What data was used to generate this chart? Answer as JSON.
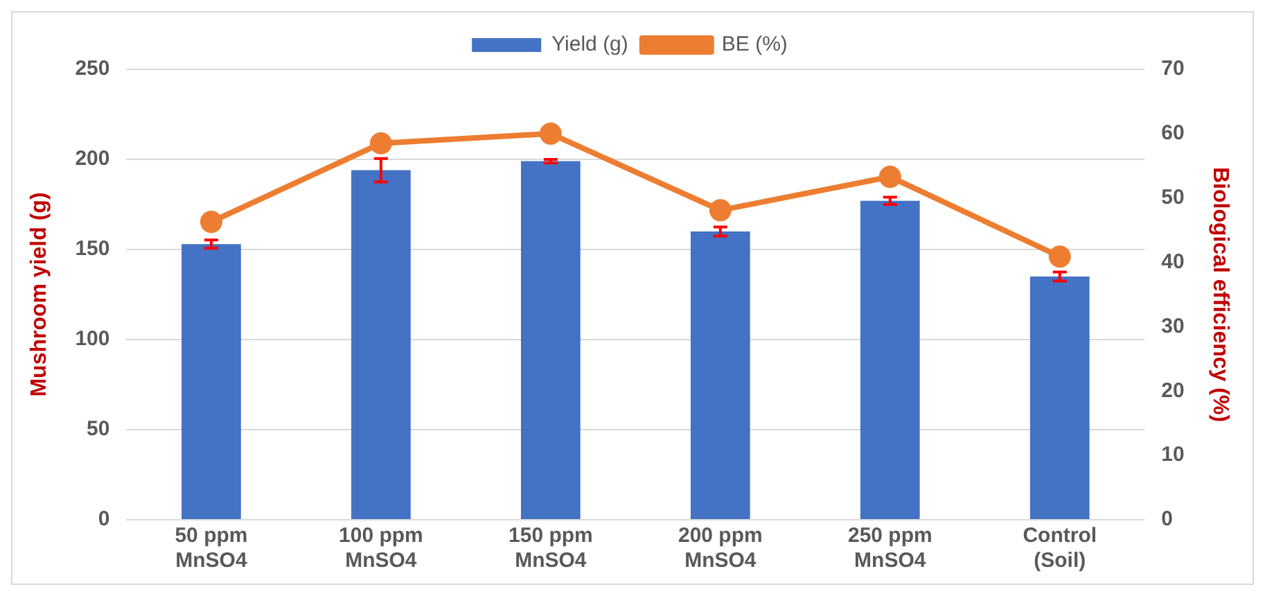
{
  "chart_data": {
    "type": "bar",
    "categories": [
      "50 ppm\nMnSO4",
      "100 ppm\nMnSO4",
      "150 ppm\nMnSO4",
      "200 ppm\nMnSO4",
      "250 ppm\nMnSO4",
      "Control\n(Soil)"
    ],
    "series": [
      {
        "name": "Yield (g)",
        "color": "#4472c4",
        "values": [
          153,
          194,
          199,
          160,
          177,
          135
        ],
        "errors": [
          2.3,
          6.5,
          1,
          2.5,
          2,
          2.5
        ]
      },
      {
        "name": "BE (%)",
        "type": "line",
        "axis": "y2",
        "color": "#ed7d31",
        "values": [
          46.3,
          58.5,
          60.0,
          48.1,
          53.3,
          40.9
        ]
      }
    ],
    "ylabel": "Mushroom yield (g)",
    "y2label": "Biological efficiency (%)",
    "ylim": [
      0,
      250
    ],
    "yticks": [
      0,
      50,
      100,
      150,
      200,
      250
    ],
    "y2lim": [
      0,
      70
    ],
    "y2ticks": [
      0,
      10,
      20,
      30,
      40,
      50,
      60,
      70
    ],
    "grid": "y",
    "legend": "top",
    "marker": "circle",
    "line_style": "solid"
  }
}
